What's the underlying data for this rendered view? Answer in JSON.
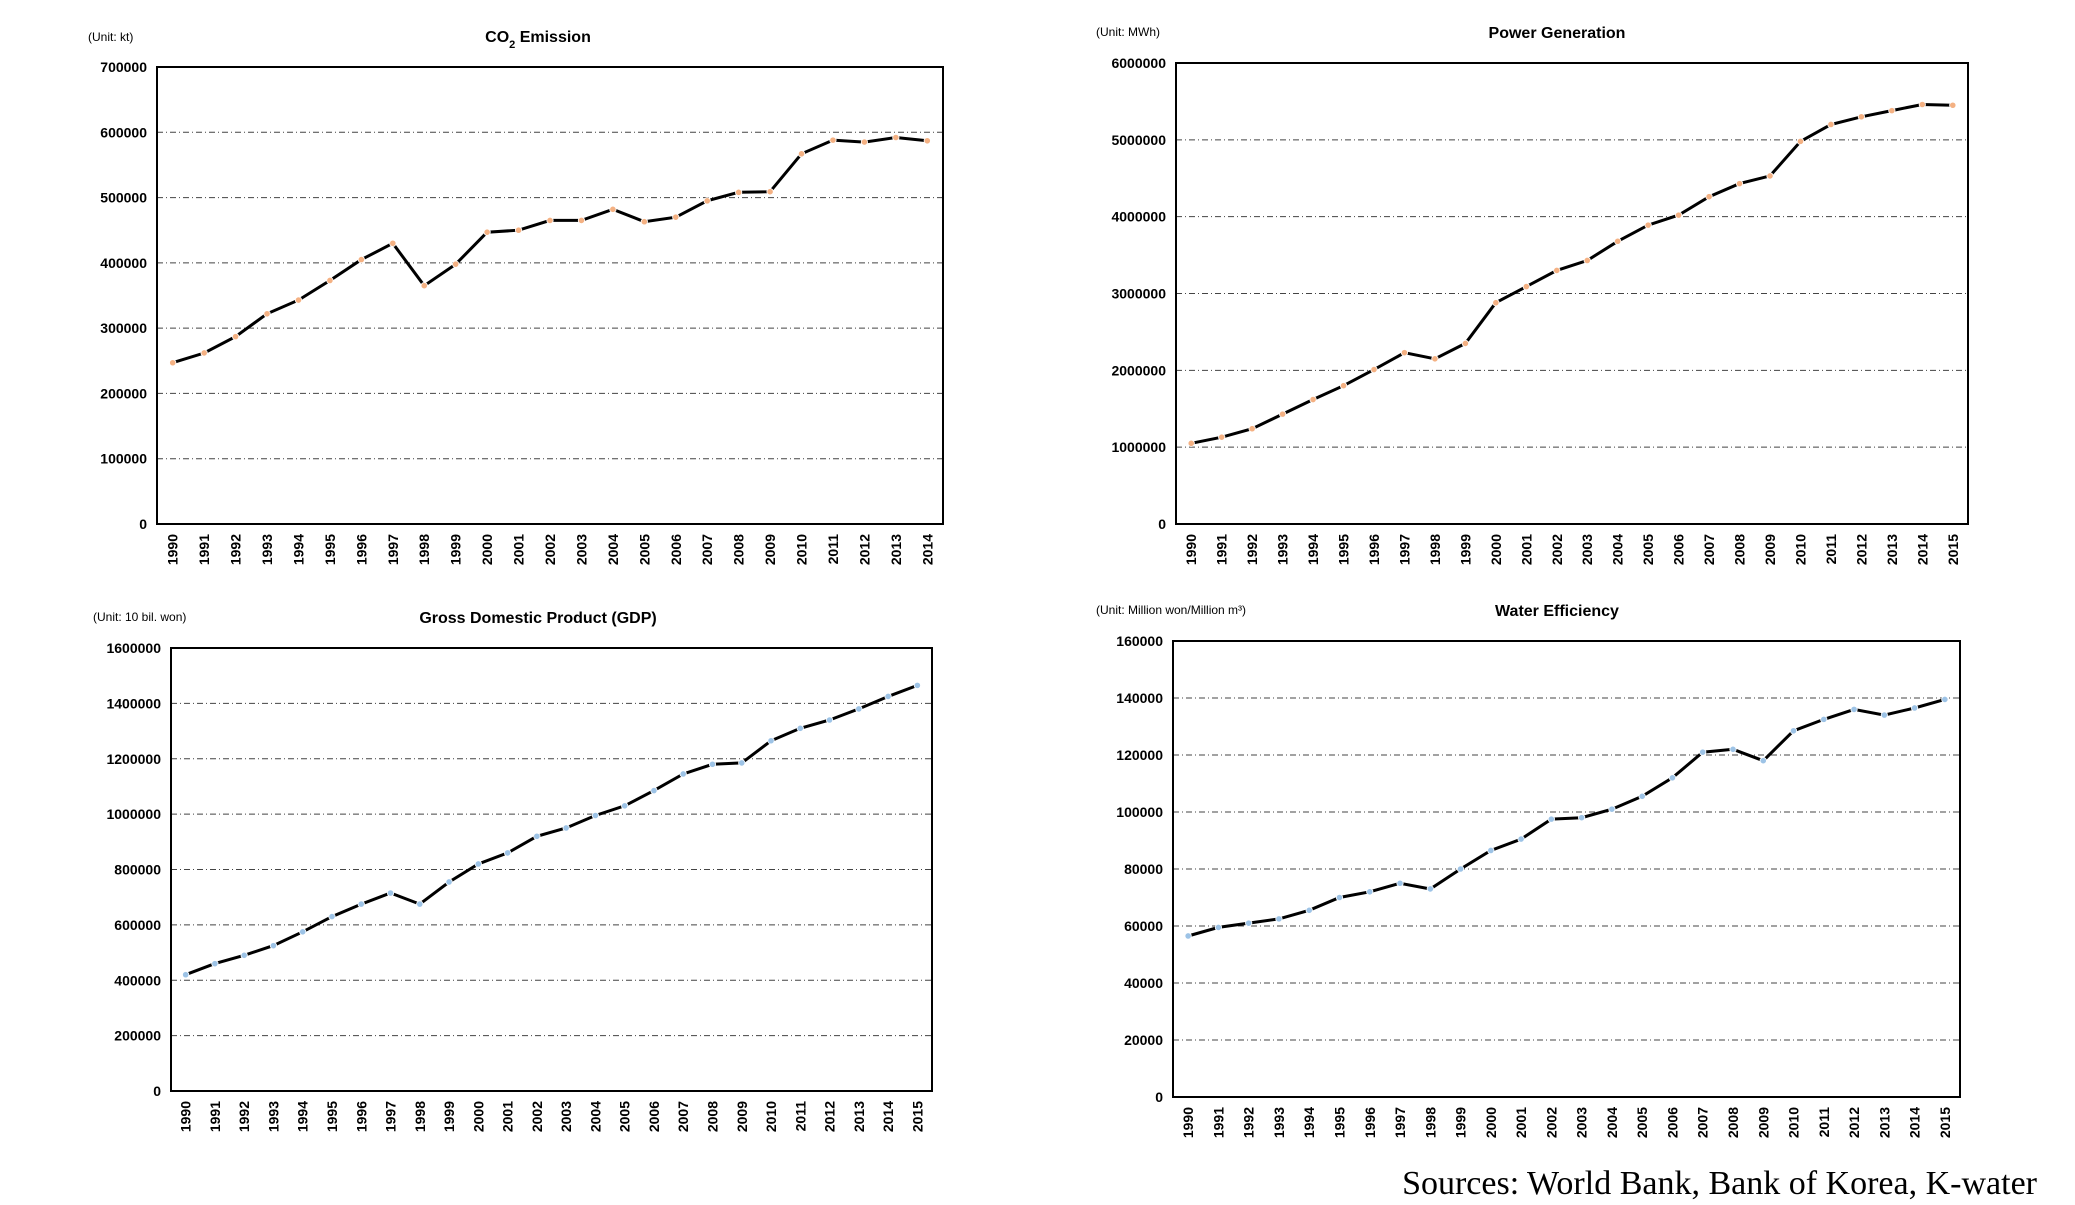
{
  "sources": "Sources: World Bank, Bank of Korea, K-water",
  "colors": {
    "line": "#000000",
    "marker_orange": "#f4b183",
    "marker_blue": "#9dc3e6",
    "grid": "#444444"
  },
  "chart_data": [
    {
      "type": "line",
      "title_main": "CO",
      "title_sub": "2",
      "title_rest": " Emission",
      "unit": "(Unit: kt)",
      "ylim": [
        0,
        700000
      ],
      "yticks": [
        0,
        100000,
        200000,
        300000,
        400000,
        500000,
        600000,
        700000
      ],
      "grid": true,
      "marker_color": "#f4b183",
      "x": [
        "1990",
        "1991",
        "1992",
        "1993",
        "1994",
        "1995",
        "1996",
        "1997",
        "1998",
        "1999",
        "2000",
        "2001",
        "2002",
        "2003",
        "2004",
        "2005",
        "2006",
        "2007",
        "2008",
        "2009",
        "2010",
        "2011",
        "2012",
        "2013",
        "2014"
      ],
      "values": [
        247000,
        262000,
        287000,
        322000,
        343000,
        373000,
        405000,
        430000,
        365000,
        398000,
        447000,
        450000,
        465000,
        465000,
        482000,
        463000,
        470000,
        495000,
        508000,
        509000,
        567000,
        588000,
        585000,
        592000,
        587000
      ]
    },
    {
      "type": "line",
      "title_main": "Power Generation",
      "title_sub": "",
      "title_rest": "",
      "unit": "(Unit: MWh)",
      "ylim": [
        0,
        6000000
      ],
      "yticks": [
        0,
        1000000,
        2000000,
        3000000,
        4000000,
        5000000,
        6000000
      ],
      "grid": true,
      "marker_color": "#f4b183",
      "x": [
        "1990",
        "1991",
        "1992",
        "1993",
        "1994",
        "1995",
        "1996",
        "1997",
        "1998",
        "1999",
        "2000",
        "2001",
        "2002",
        "2003",
        "2004",
        "2005",
        "2006",
        "2007",
        "2008",
        "2009",
        "2010",
        "2011",
        "2012",
        "2013",
        "2014",
        "2015"
      ],
      "values": [
        1050000,
        1130000,
        1240000,
        1430000,
        1620000,
        1800000,
        2010000,
        2230000,
        2150000,
        2350000,
        2880000,
        3090000,
        3300000,
        3430000,
        3680000,
        3890000,
        4020000,
        4260000,
        4430000,
        4530000,
        4980000,
        5200000,
        5300000,
        5380000,
        5460000,
        5450000
      ]
    },
    {
      "type": "line",
      "title_main": "Gross Domestic Product (GDP)",
      "title_sub": "",
      "title_rest": "",
      "unit": "(Unit: 10 bil. won)",
      "ylim": [
        0,
        1600000
      ],
      "yticks": [
        0,
        200000,
        400000,
        600000,
        800000,
        1000000,
        1200000,
        1400000,
        1600000
      ],
      "grid": true,
      "marker_color": "#9dc3e6",
      "x": [
        "1990",
        "1991",
        "1992",
        "1993",
        "1994",
        "1995",
        "1996",
        "1997",
        "1998",
        "1999",
        "2000",
        "2001",
        "2002",
        "2003",
        "2004",
        "2005",
        "2006",
        "2007",
        "2008",
        "2009",
        "2010",
        "2011",
        "2012",
        "2013",
        "2014",
        "2015"
      ],
      "values": [
        420000,
        460000,
        490000,
        525000,
        575000,
        630000,
        675000,
        715000,
        675000,
        755000,
        820000,
        860000,
        920000,
        950000,
        995000,
        1030000,
        1085000,
        1145000,
        1180000,
        1185000,
        1265000,
        1310000,
        1340000,
        1380000,
        1425000,
        1465000
      ]
    },
    {
      "type": "line",
      "title_main": "Water Efficiency",
      "title_sub": "",
      "title_rest": "",
      "unit": "(Unit: Million won/Million m³)",
      "ylim": [
        0,
        160000
      ],
      "yticks": [
        0,
        20000,
        40000,
        60000,
        80000,
        100000,
        120000,
        140000,
        160000
      ],
      "grid": true,
      "marker_color": "#9dc3e6",
      "x": [
        "1990",
        "1991",
        "1992",
        "1993",
        "1994",
        "1995",
        "1996",
        "1997",
        "1998",
        "1999",
        "2000",
        "2001",
        "2002",
        "2003",
        "2004",
        "2005",
        "2006",
        "2007",
        "2008",
        "2009",
        "2010",
        "2011",
        "2012",
        "2013",
        "2014",
        "2015"
      ],
      "values": [
        56500,
        59500,
        61000,
        62500,
        65500,
        70000,
        72000,
        75000,
        73000,
        80000,
        86500,
        90500,
        97500,
        98000,
        101000,
        105500,
        112000,
        121000,
        122000,
        118000,
        128500,
        132500,
        136000,
        134000,
        136500,
        139500
      ]
    }
  ]
}
